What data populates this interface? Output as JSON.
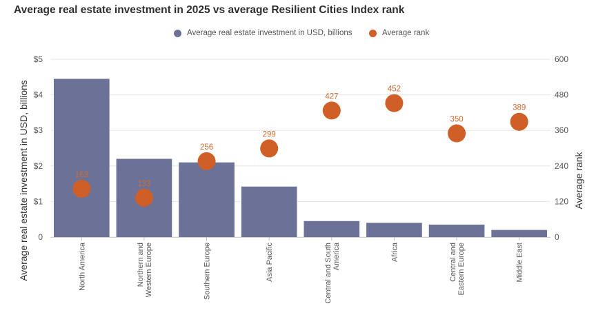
{
  "chart_data": {
    "type": "bar",
    "title": "Average real estate investment in 2025 vs average Resilient Cities Index rank",
    "categories": [
      "North America",
      "Northern and Western Europe",
      "Southern Europe",
      "Asia Pacific",
      "Central and South America",
      "Africa",
      "Central and Eastern Europe",
      "Middle East"
    ],
    "category_lines": [
      [
        "North America"
      ],
      [
        "Northern and",
        "Western Europe"
      ],
      [
        "Southern Europe"
      ],
      [
        "Asia Pacific"
      ],
      [
        "Central and South",
        "America"
      ],
      [
        "Africa"
      ],
      [
        "Central and",
        "Eastern Europe"
      ],
      [
        "Middle East"
      ]
    ],
    "series": [
      {
        "name": "Average real estate investment in USD, billions",
        "type": "bar",
        "axis": "left",
        "color": "#6b7197",
        "values": [
          4.45,
          2.2,
          2.1,
          1.42,
          0.45,
          0.4,
          0.35,
          0.2
        ]
      },
      {
        "name": "Average rank",
        "type": "scatter",
        "axis": "right",
        "color": "#cf5f27",
        "values": [
          163,
          133,
          256,
          299,
          427,
          452,
          350,
          389
        ],
        "labels": [
          "163",
          "133",
          "256",
          "299",
          "427",
          "452",
          "350",
          "389"
        ]
      }
    ],
    "y_left": {
      "label": "Average real estate investment in USD, billions",
      "min": 0,
      "max": 5,
      "ticks": [
        0,
        1,
        2,
        3,
        4,
        5
      ],
      "tick_labels": [
        "0",
        "$1",
        "$2",
        "$3",
        "$4",
        "$5"
      ]
    },
    "y_right": {
      "label": "Average rank",
      "min": 0,
      "max": 600,
      "ticks": [
        0,
        120,
        240,
        360,
        480,
        600
      ],
      "tick_labels": [
        "0",
        "120",
        "240",
        "360",
        "480",
        "600"
      ]
    },
    "grid": true,
    "legend_position": "top-center"
  }
}
